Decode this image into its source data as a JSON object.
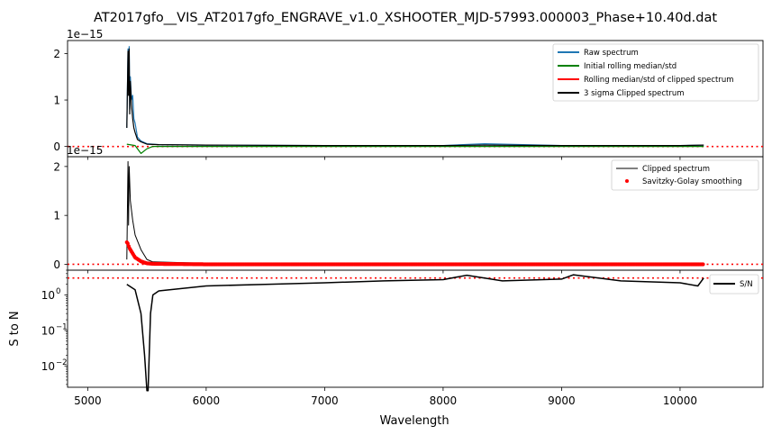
{
  "title": "AT2017gfo__VIS_AT2017gfo_ENGRAVE_v1.0_XSHOOTER_MJD-57993.000003_Phase+10.40d.dat",
  "xlabel": "Wavelength",
  "x_ticks": [
    "5000",
    "6000",
    "7000",
    "8000",
    "9000",
    "10000"
  ],
  "colors": {
    "raw": "#1f77b4",
    "initial": "#008000",
    "rolling_clipped": "#ff0000",
    "clipped": "#000000",
    "sg": "#ff0000",
    "sn": "#000000",
    "threshold": "#ff0000"
  },
  "chart_data": [
    {
      "type": "line",
      "panel": "top",
      "offset_text": "1e−15",
      "y_ticks": [
        "0",
        "1",
        "2"
      ],
      "xlim": [
        4830,
        10700
      ],
      "ylim": [
        -0.22,
        2.28
      ],
      "legend_position": "upper right",
      "series": [
        {
          "name": "Raw spectrum",
          "color": "#1f77b4"
        },
        {
          "name": "Initial rolling median/std",
          "color": "#008000"
        },
        {
          "name": "Rolling median/std of clipped spectrum",
          "color": "#ff0000"
        },
        {
          "name": "3 sigma Clipped spectrum",
          "color": "#000000"
        }
      ],
      "threshold_y": 0,
      "approx_points": {
        "x": [
          5330,
          5340,
          5345,
          5350,
          5355,
          5360,
          5370,
          5380,
          5390,
          5400,
          5420,
          5450,
          5500,
          5600,
          6000,
          7000,
          8000,
          8350,
          9000,
          10000,
          10200
        ],
        "raw": [
          0.4,
          2.1,
          1.2,
          2.15,
          0.8,
          1.5,
          1.0,
          1.1,
          0.6,
          0.5,
          0.2,
          0.12,
          0.06,
          0.04,
          0.03,
          0.02,
          0.02,
          0.06,
          0.02,
          0.02,
          0.03
        ],
        "clipped": [
          0.4,
          2.05,
          1.1,
          2.1,
          0.7,
          1.4,
          0.9,
          0.6,
          0.4,
          0.3,
          0.15,
          0.1,
          0.05,
          0.04,
          0.03,
          0.02,
          0.02,
          0.03,
          0.02,
          0.02,
          0.03
        ]
      }
    },
    {
      "type": "line",
      "panel": "middle",
      "offset_text": "1e−15",
      "y_ticks": [
        "0",
        "1",
        "2"
      ],
      "xlim": [
        4830,
        10700
      ],
      "ylim": [
        -0.12,
        2.2
      ],
      "legend_position": "upper right",
      "series": [
        {
          "name": "Clipped spectrum",
          "color": "#000000"
        },
        {
          "name": "Savitzky-Golay smoothing",
          "color": "#ff0000"
        }
      ],
      "threshold_y": 0,
      "approx_points": {
        "x": [
          5330,
          5340,
          5345,
          5350,
          5360,
          5380,
          5400,
          5450,
          5500,
          5550,
          6000,
          8000,
          10000,
          10200
        ],
        "clipped": [
          0.1,
          2.1,
          0.8,
          2.0,
          1.3,
          0.9,
          0.6,
          0.3,
          0.1,
          0.05,
          0.02,
          0.02,
          0.02,
          0.02
        ],
        "smoothed": [
          0.45,
          0.42,
          0.38,
          0.34,
          0.3,
          0.22,
          0.14,
          0.06,
          0.02,
          0.01,
          0.0,
          0.0,
          0.0,
          0.0
        ]
      }
    },
    {
      "type": "line",
      "panel": "bottom",
      "ylabel": "S to N",
      "y_scale": "log",
      "y_ticks": [
        "10^0",
        "10^-1",
        "10^-2"
      ],
      "xlim": [
        4830,
        10700
      ],
      "ylim": [
        0.0025,
        5
      ],
      "legend_position": "upper right",
      "series": [
        {
          "name": "S/N",
          "color": "#000000"
        }
      ],
      "threshold_y": 3,
      "approx_points": {
        "x": [
          5330,
          5400,
          5450,
          5480,
          5500,
          5510,
          5530,
          5550,
          5600,
          6000,
          6500,
          7000,
          7500,
          8000,
          8200,
          8500,
          9000,
          9100,
          9500,
          10000,
          10150,
          10200
        ],
        "sn": [
          2.0,
          1.4,
          0.3,
          0.02,
          0.002,
          0.002,
          0.3,
          1.0,
          1.3,
          1.8,
          2.0,
          2.2,
          2.5,
          2.7,
          3.6,
          2.5,
          2.8,
          3.7,
          2.5,
          2.2,
          1.8,
          3.0
        ]
      }
    }
  ]
}
